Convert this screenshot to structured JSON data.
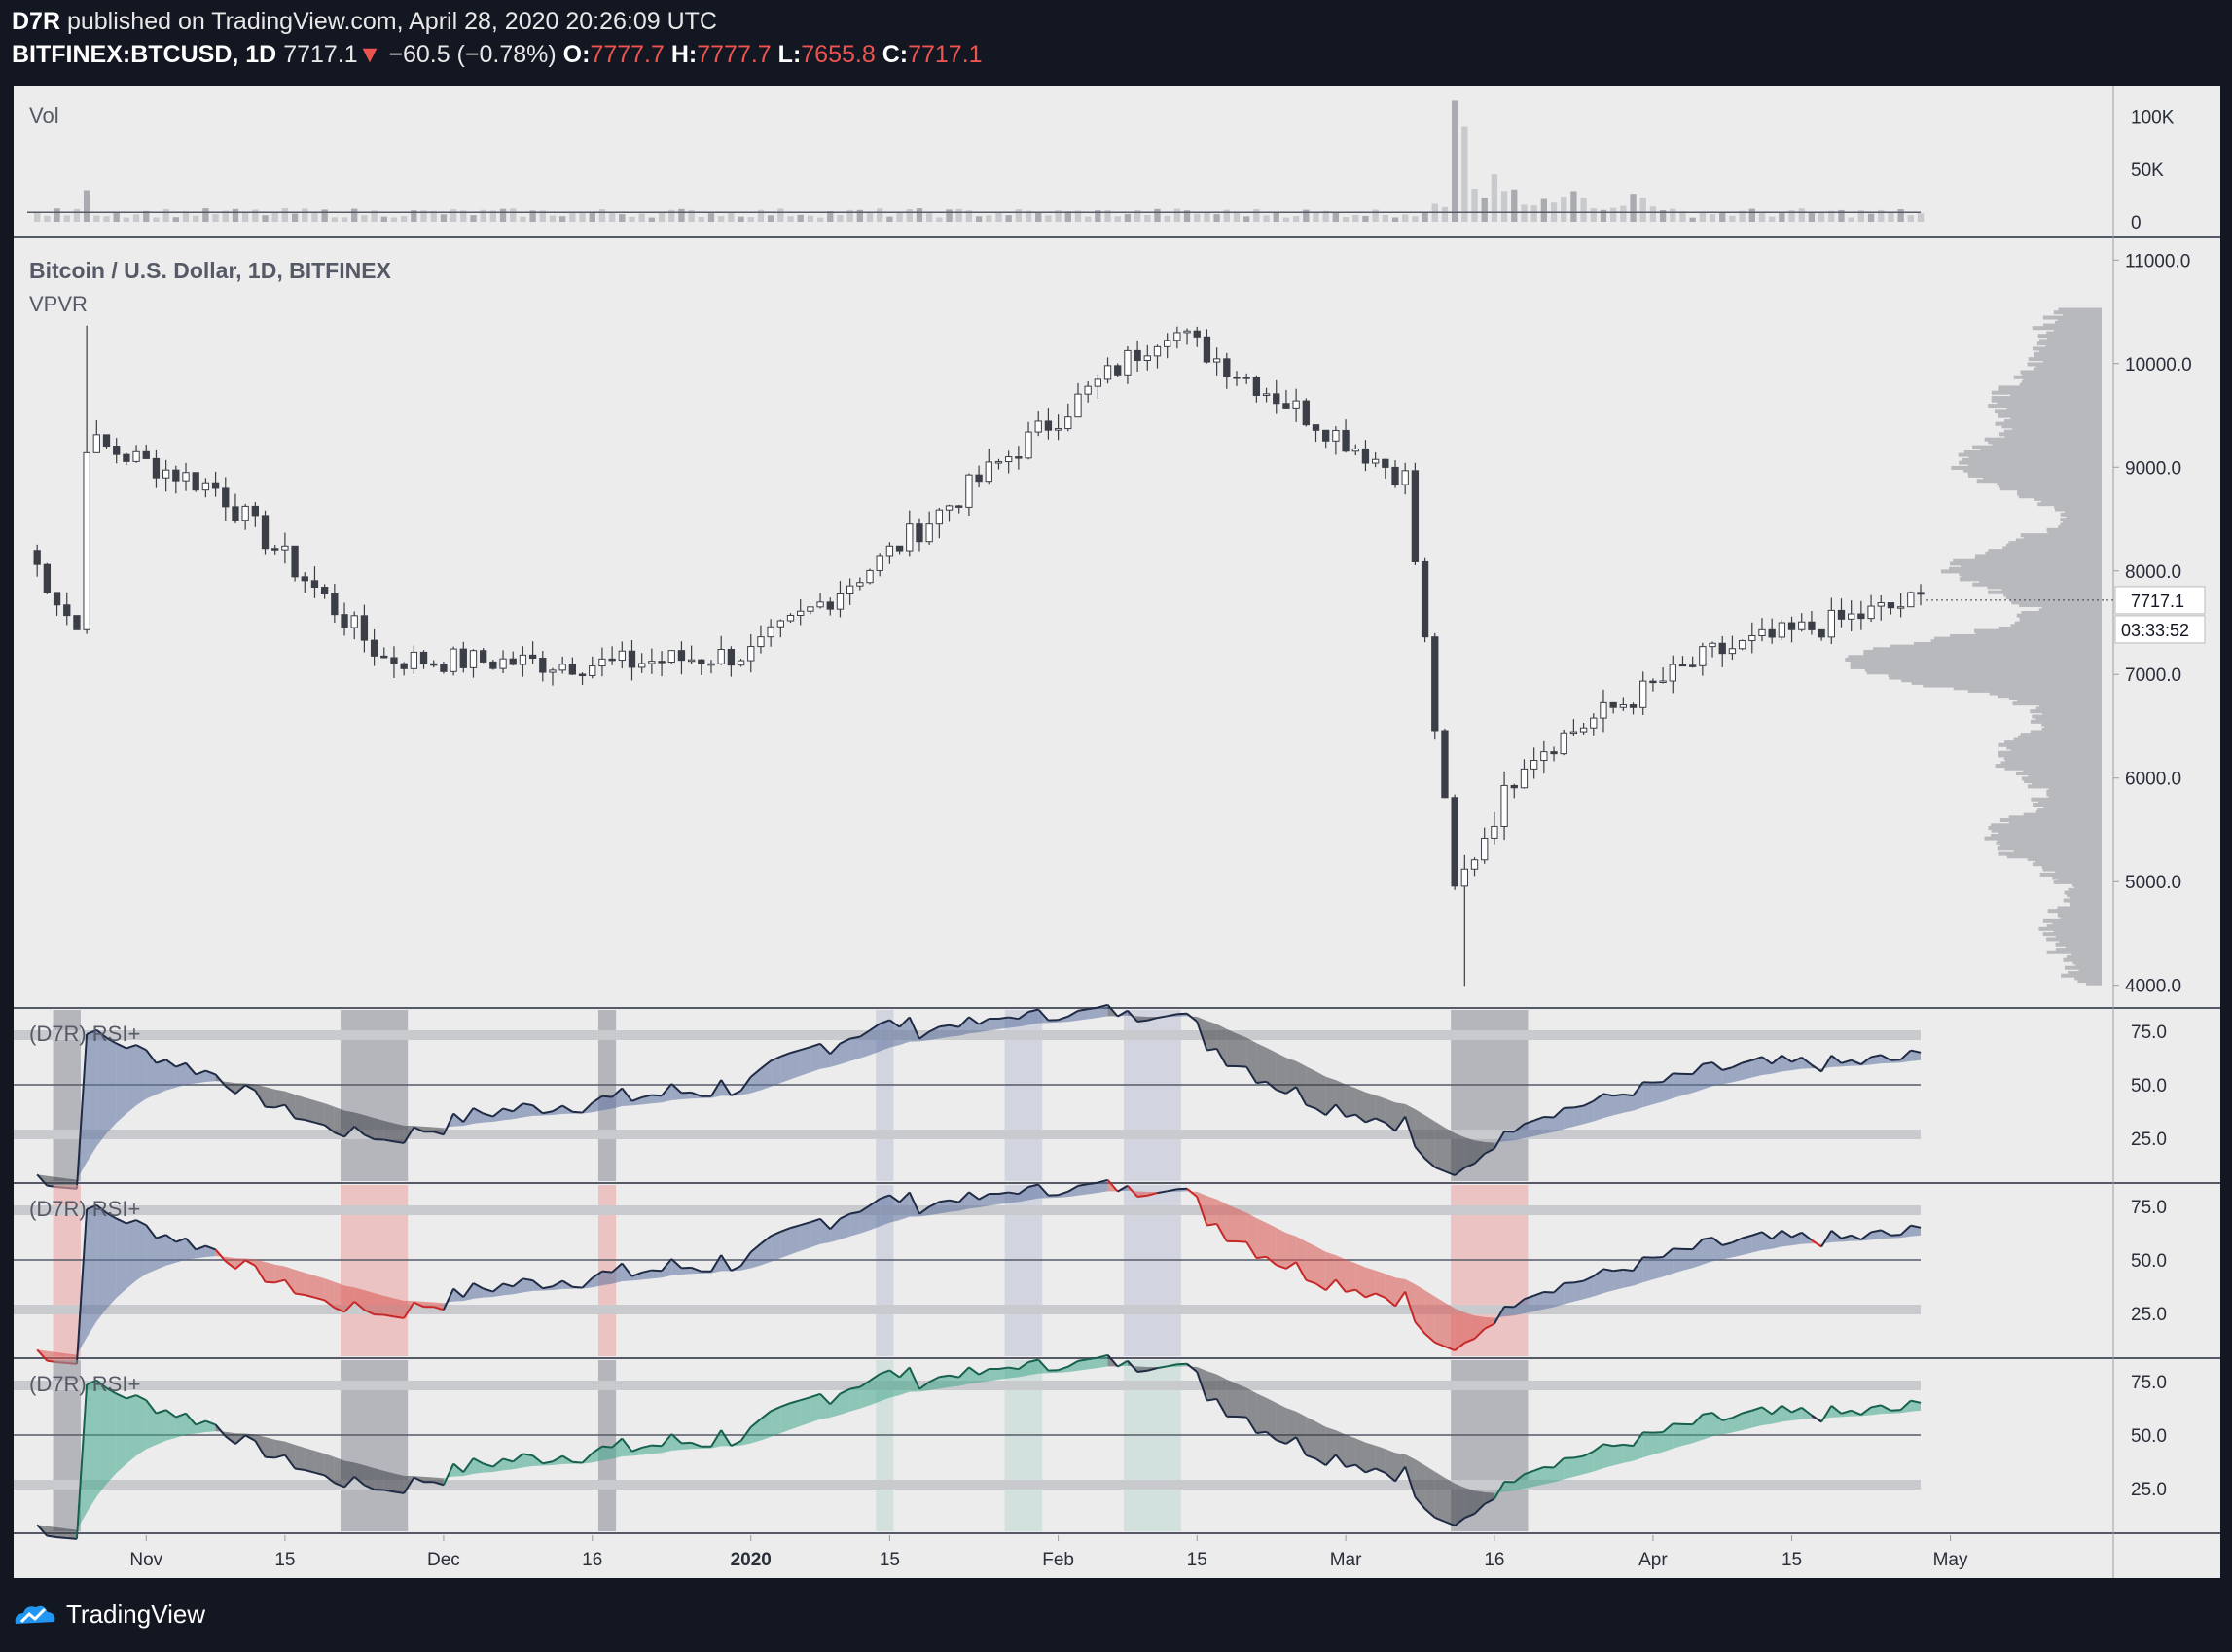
{
  "header": {
    "author": "D7R",
    "published": "published on TradingView.com, April 28, 2020 20:26:09 UTC",
    "symbol": "BITFINEX:BTCUSD, 1D",
    "last": "7717.1",
    "change_arrow": "▼",
    "change": "−60.5 (−0.78%)",
    "o_label": "O:",
    "o_value": "7777.7",
    "h_label": "H:",
    "h_value": "7777.7",
    "l_label": "L:",
    "l_value": "7655.8",
    "c_label": "C:",
    "c_value": "7717.1"
  },
  "footer": {
    "brand": "TradingView"
  },
  "colors": {
    "background": "#131722",
    "pane": "#ececec",
    "up_candle": "#ffffff",
    "down_candle": "#3b3e46",
    "rsi_blue": "#5b6f9e",
    "rsi_red": "#d9534f",
    "rsi_green": "#3fa58a",
    "rsi_dark": "#3b3e46"
  },
  "chart_data": {
    "type": "candlestick",
    "title": "Bitcoin / U.S. Dollar, 1D, BITFINEX",
    "overlay": "VPVR",
    "current_price_label": "7717.1",
    "countdown_label": "03:33:52",
    "y_ticks": [
      "11000.0",
      "10000.0",
      "9000.0",
      "8000.0",
      "7000.0",
      "6000.0",
      "5000.0",
      "4000.0"
    ],
    "ylim": [
      3800,
      11200
    ],
    "x_ticks": [
      "Nov",
      "15",
      "Dec",
      "16",
      "2020",
      "15",
      "Feb",
      "15",
      "Mar",
      "16",
      "Apr",
      "15",
      "May"
    ],
    "x_range": [
      "2019-10-20",
      "2020-04-28"
    ],
    "closes_key_points": [
      {
        "date": "2019-10-25",
        "close": 7430
      },
      {
        "date": "2019-10-26",
        "close": 9250
      },
      {
        "date": "2019-11-08",
        "close": 8800
      },
      {
        "date": "2019-11-25",
        "close": 7150
      },
      {
        "date": "2019-12-18",
        "close": 7100
      },
      {
        "date": "2020-01-01",
        "close": 7200
      },
      {
        "date": "2020-01-14",
        "close": 8100
      },
      {
        "date": "2020-02-12",
        "close": 10350
      },
      {
        "date": "2020-03-07",
        "close": 8900
      },
      {
        "date": "2020-03-12",
        "close": 4900
      },
      {
        "date": "2020-03-19",
        "close": 6200
      },
      {
        "date": "2020-04-07",
        "close": 7200
      },
      {
        "date": "2020-04-28",
        "close": 7717
      }
    ],
    "volume": {
      "label": "Vol",
      "y_ticks": [
        "100K",
        "50K",
        "0"
      ],
      "spike": {
        "date": "2020-03-12",
        "value": 115000
      }
    },
    "rsi_panes": [
      {
        "label": "(D7R) RSI+",
        "levels": [
          "75.0",
          "50.0",
          "25.0"
        ]
      },
      {
        "label": "(D7R) RSI+",
        "levels": [
          "75.0",
          "50.0",
          "25.0"
        ]
      },
      {
        "label": "(D7R) RSI+",
        "levels": [
          "75.0",
          "50.0",
          "25.0"
        ]
      }
    ]
  }
}
